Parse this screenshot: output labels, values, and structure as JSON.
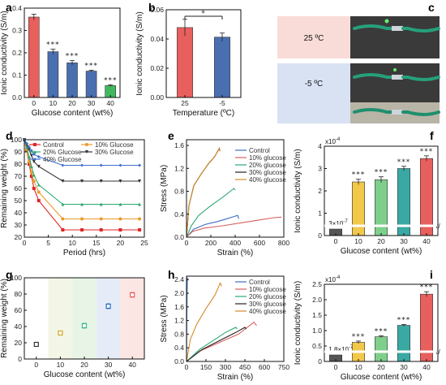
{
  "chart_data": [
    {
      "panel": "a",
      "type": "bar",
      "categories": [
        "0",
        "10",
        "20",
        "30",
        "40"
      ],
      "values": [
        0.36,
        0.205,
        0.155,
        0.118,
        0.053
      ],
      "errors": [
        0.013,
        0.011,
        0.01,
        0.004,
        0.004
      ],
      "annotations": [
        "",
        "***",
        "***",
        "***",
        "***"
      ],
      "colors": [
        "#e8605d",
        "#4a6fb0",
        "#4a6fb0",
        "#4a6fb0",
        "#3fb95d"
      ],
      "xlabel": "Glucose content (wt%)",
      "ylabel": "Ionic conductivity (S/m)",
      "ylim": [
        0,
        0.4
      ],
      "yticks": [
        "0.0",
        "0.1",
        "0.2",
        "0.3",
        "0.4"
      ]
    },
    {
      "panel": "b",
      "type": "bar",
      "categories": [
        "25",
        "-5"
      ],
      "values": [
        0.051,
        0.044
      ],
      "errors": [
        0.006,
        0.003
      ],
      "colors": [
        "#e8605d",
        "#4a6fb0"
      ],
      "significance": "*",
      "xlabel": "Temperature (ºC)",
      "ylabel": "Ionic conductivity (S/m)",
      "ylim": [
        0,
        0.064
      ],
      "yticks": [
        "0.00",
        "0.02",
        "0.04",
        "0.06"
      ]
    },
    {
      "panel": "d",
      "type": "line",
      "xlabel": "Period (hrs)",
      "ylabel": "Remaining weight (%)",
      "xlim": [
        0,
        25
      ],
      "ylim": [
        20,
        100
      ],
      "xticks": [
        "0",
        "5",
        "10",
        "15",
        "20",
        "25"
      ],
      "yticks": [
        "20",
        "30",
        "40",
        "50",
        "60",
        "70",
        "80",
        "90",
        "100"
      ],
      "x": [
        0,
        0.5,
        1,
        1.5,
        2,
        3,
        8,
        12,
        16,
        20,
        24
      ],
      "series": [
        {
          "name": "Control",
          "color": "#e02525",
          "marker": "square",
          "values": [
            100,
            91,
            80,
            70,
            60,
            50,
            26,
            26,
            26,
            26,
            26
          ]
        },
        {
          "name": "10% Glucose",
          "color": "#e99b2a",
          "marker": "circle",
          "values": [
            100,
            92,
            82,
            73,
            66,
            57,
            35,
            35,
            35,
            35,
            35
          ]
        },
        {
          "name": "20% Glucose",
          "color": "#2aaa72",
          "marker": "triangle",
          "values": [
            100,
            94,
            86,
            78,
            71,
            63,
            47,
            47,
            47,
            47,
            47
          ]
        },
        {
          "name": "30% Glucose",
          "color": "#333333",
          "marker": "triangle-down",
          "values": [
            100,
            96,
            92,
            87,
            82,
            78,
            66,
            66,
            66,
            66,
            66
          ]
        },
        {
          "name": "40% Glucose",
          "color": "#3f6fd0",
          "marker": "diamond",
          "values": [
            100,
            97,
            94,
            91,
            88,
            86,
            79,
            79,
            79,
            79,
            79
          ]
        }
      ]
    },
    {
      "panel": "e",
      "type": "line",
      "xlabel": "Strain (%)",
      "ylabel": "Stress (MPa)",
      "xlim": [
        0,
        800
      ],
      "ylim": [
        0,
        1.7
      ],
      "xticks": [
        "0",
        "200",
        "400",
        "600",
        "800"
      ],
      "yticks": [
        "0.0",
        "0.4",
        "0.8",
        "1.2",
        "1.6"
      ],
      "series": [
        {
          "name": "Control",
          "color": "#3b6fc0",
          "x": [
            0,
            60,
            150,
            250,
            330,
            390,
            420,
            430
          ],
          "y": [
            0,
            0.14,
            0.22,
            0.27,
            0.32,
            0.36,
            0.38,
            0.32
          ]
        },
        {
          "name": "10% glucose",
          "color": "#d9605f",
          "x": [
            0,
            50,
            150,
            300,
            450,
            600,
            720,
            780
          ],
          "y": [
            0,
            0.1,
            0.16,
            0.2,
            0.25,
            0.3,
            0.34,
            0.35
          ]
        },
        {
          "name": "20% glucose",
          "color": "#2aaa72",
          "x": [
            0,
            40,
            100,
            200,
            300,
            390,
            400
          ],
          "y": [
            0,
            0.2,
            0.38,
            0.55,
            0.7,
            0.85,
            0.82
          ]
        },
        {
          "name": "30% glucose",
          "color": "#222222",
          "x": [
            0,
            20,
            60,
            120,
            180,
            230,
            270,
            275
          ],
          "y": [
            0,
            0.55,
            0.9,
            1.1,
            1.28,
            1.4,
            1.55,
            1.5
          ]
        },
        {
          "name": "40% glucose",
          "color": "#d68a2a",
          "x": [
            0,
            20,
            60,
            120,
            180,
            230,
            270,
            275
          ],
          "y": [
            0,
            0.55,
            0.9,
            1.1,
            1.28,
            1.4,
            1.55,
            1.5
          ]
        }
      ]
    },
    {
      "panel": "f",
      "type": "bar",
      "categories": [
        "0",
        "10",
        "20",
        "30",
        "40"
      ],
      "values": [
        0.0,
        2.4,
        2.5,
        3.0,
        3.45
      ],
      "errors": [
        0,
        0.12,
        0.13,
        0.1,
        0.12
      ],
      "colors": [
        "#555555",
        "#f2c84b",
        "#7fcf8c",
        "#3aa9a3",
        "#e8605d"
      ],
      "annotations": [
        "3×10-7",
        "***",
        "***",
        "***",
        "***"
      ],
      "multiplier": "x10-4",
      "xlabel": "Glucose content (wt%)",
      "ylabel": "Ionic conductivity (S/m)",
      "ylim": [
        0,
        4
      ],
      "yticks": [
        "0",
        "1",
        "2",
        "3",
        "4"
      ]
    },
    {
      "panel": "g",
      "type": "scatter",
      "categories": [
        "0",
        "10",
        "20",
        "30",
        "40"
      ],
      "values": [
        18,
        32,
        41,
        65,
        79
      ],
      "errors": [
        2,
        2,
        3,
        3,
        3
      ],
      "colors": [
        "#333333",
        "#d1a626",
        "#3ab98a",
        "#2a6fc0",
        "#e8605d"
      ],
      "bands": [
        "#f3f6e6",
        "#e7f4e6",
        "#e5ecf7",
        "#fbe6e4"
      ],
      "xlabel": "Glucose content (wt%)",
      "ylabel": "Remaining weight (%)",
      "ylim": [
        0,
        100
      ],
      "yticks": [
        "0",
        "20",
        "40",
        "60",
        "80",
        "100"
      ]
    },
    {
      "panel": "h",
      "type": "line",
      "xlabel": "Strain (%)",
      "ylabel": "Stress (MPa)",
      "xlim": [
        0,
        750
      ],
      "ylim": [
        0,
        2.5
      ],
      "xticks": [
        "0",
        "150",
        "300",
        "450",
        "600",
        "750"
      ],
      "yticks": [
        "0.0",
        "0.4",
        "0.8",
        "1.2",
        "1.6",
        "2.0",
        "2.4"
      ],
      "series": [
        {
          "name": "Control",
          "color": "#3b6fc0",
          "x": [
            0,
            3,
            6,
            8,
            10
          ],
          "y": [
            0,
            1.5,
            2.4,
            2.45,
            2.45
          ]
        },
        {
          "name": "10% glucose",
          "color": "#d9605f",
          "x": [
            0,
            100,
            250,
            400,
            520,
            540
          ],
          "y": [
            0,
            0.3,
            0.55,
            0.8,
            1.15,
            1.05
          ]
        },
        {
          "name": "20% glucose",
          "color": "#2aaa72",
          "x": [
            0,
            100,
            200,
            300,
            380,
            390
          ],
          "y": [
            0,
            0.35,
            0.6,
            0.85,
            1.0,
            0.95
          ]
        },
        {
          "name": "30% glucose",
          "color": "#222222",
          "x": [
            0,
            120,
            250,
            380,
            450,
            460
          ],
          "y": [
            0,
            0.35,
            0.6,
            0.85,
            1.0,
            0.95
          ]
        },
        {
          "name": "40% glucose",
          "color": "#d68a2a",
          "x": [
            0,
            30,
            80,
            150,
            220,
            260,
            270
          ],
          "y": [
            0,
            0.65,
            1.1,
            1.55,
            1.95,
            2.3,
            2.2
          ]
        }
      ]
    },
    {
      "panel": "i",
      "type": "bar",
      "categories": [
        "0",
        "10",
        "20",
        "30",
        "40"
      ],
      "values": [
        0.0,
        0.62,
        0.8,
        1.17,
        2.18
      ],
      "errors": [
        0,
        0.04,
        0.03,
        0.03,
        0.08
      ],
      "colors": [
        "#555555",
        "#f2c84b",
        "#7fcf8c",
        "#3aa9a3",
        "#e8605d"
      ],
      "annotations": [
        "1.8×10-7",
        "***",
        "***",
        "***",
        "***"
      ],
      "multiplier": "x10-4",
      "xlabel": "Glucose content (wt%)",
      "ylabel": "Ionic conductivity (S/m)",
      "ylim": [
        0,
        2.5
      ],
      "yticks": [
        "0",
        "0.5",
        "1.0",
        "1.5",
        "2.0",
        "2.5"
      ]
    }
  ],
  "photo_panel": {
    "panel": "c",
    "labels": [
      "25 ºC",
      "-5 ºC"
    ],
    "bg_colors": [
      "#f9dcd8",
      "#d8e2f3"
    ]
  }
}
